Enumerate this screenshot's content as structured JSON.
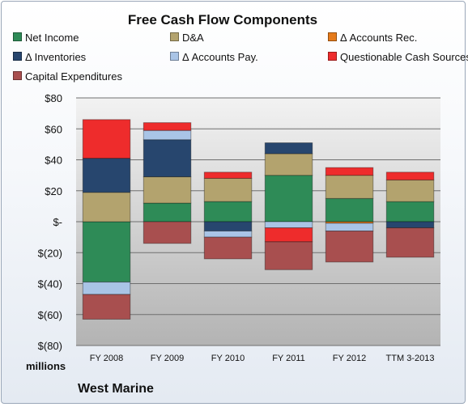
{
  "chart_data": {
    "type": "bar",
    "stacked": true,
    "title": "Free Cash Flow Components",
    "footer": "West Marine",
    "unit_label": "millions",
    "categories": [
      "FY 2008",
      "FY 2009",
      "FY 2010",
      "FY 2011",
      "FY 2012",
      "TTM 3-2013"
    ],
    "ylim": [
      -80,
      80
    ],
    "y_ticks": [
      80,
      60,
      40,
      20,
      0,
      -20,
      -40,
      -60,
      -80
    ],
    "y_tick_labels": [
      "$80",
      "$60",
      "$40",
      "$20",
      "$-",
      "$(20)",
      "$(40)",
      "$(60)",
      "$(80)"
    ],
    "grid": true,
    "legend_position": "top",
    "series": [
      {
        "name": "Net Income",
        "color": "#2e8b57",
        "values": [
          -39,
          12,
          13,
          30,
          15,
          13
        ]
      },
      {
        "name": "D&A",
        "color": "#b3a36e",
        "values": [
          19,
          17,
          15,
          14,
          15,
          14
        ]
      },
      {
        "name": "Δ Accounts Rec.",
        "color": "#e57a1a",
        "values": [
          0,
          0,
          0,
          0,
          -1,
          0
        ]
      },
      {
        "name": "Δ Inventories",
        "color": "#27466e",
        "values": [
          22,
          24,
          -6,
          7,
          0,
          -4
        ]
      },
      {
        "name": "Δ Accounts Pay.",
        "color": "#a9c4e6",
        "values": [
          -8,
          6,
          -4,
          -4,
          -5,
          0
        ]
      },
      {
        "name": "Questionable Cash Sources",
        "color": "#ee2c2c",
        "values": [
          25,
          5,
          4,
          -9,
          5,
          5
        ]
      },
      {
        "name": "Capital Expenditures",
        "color": "#a84f4f",
        "values": [
          -16,
          -14,
          -14,
          -18,
          -20,
          -19
        ]
      }
    ]
  }
}
